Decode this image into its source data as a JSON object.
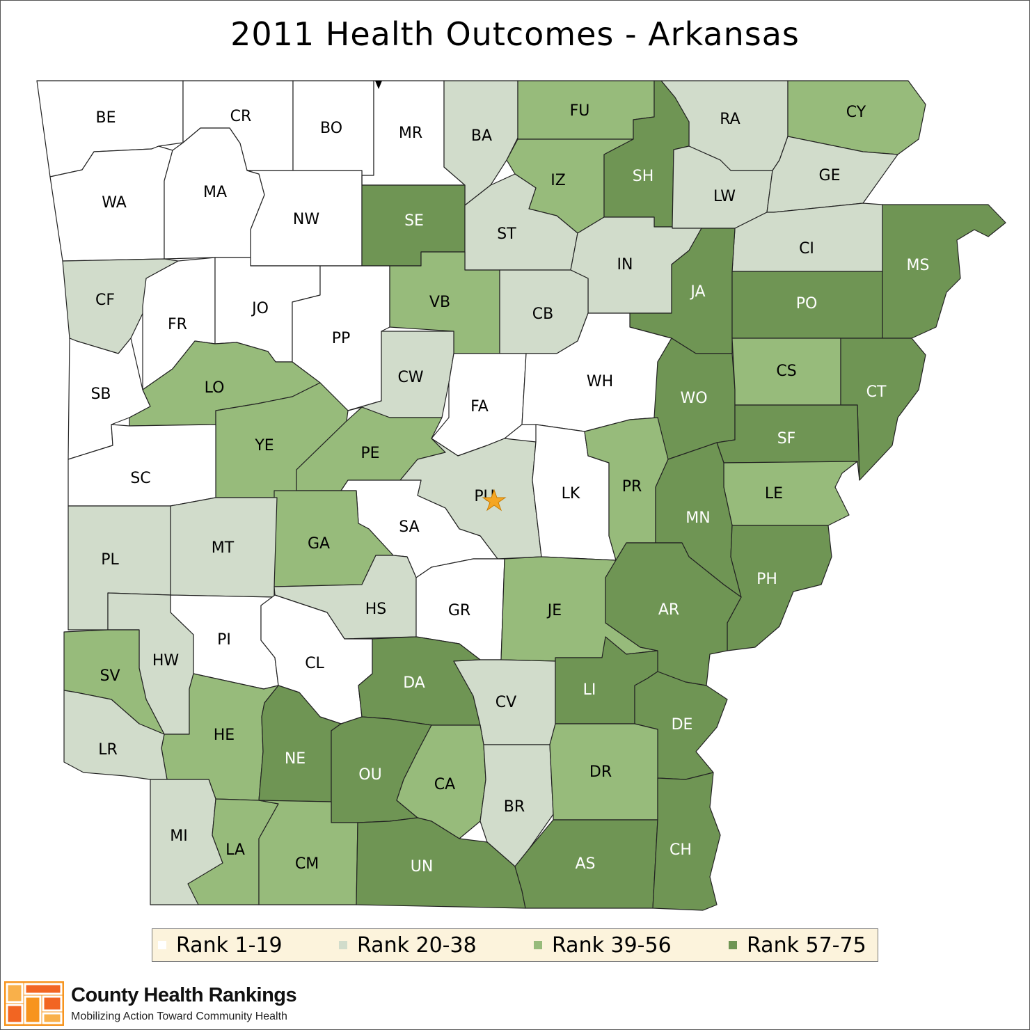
{
  "title": "2011 Health Outcomes - Arkansas",
  "colors": {
    "rank_1_19": "#ffffff",
    "rank_20_38": "#d1dccb",
    "rank_39_56": "#97bb7b",
    "rank_57_75": "#6f9554",
    "capital_star": "#f5a623"
  },
  "legend": [
    {
      "label": "Rank 1-19",
      "color": "#ffffff"
    },
    {
      "label": "Rank 20-38",
      "color": "#d1dccb"
    },
    {
      "label": "Rank 39-56",
      "color": "#97bb7b"
    },
    {
      "label": "Rank 57-75",
      "color": "#6f9554"
    }
  ],
  "counties": [
    {
      "code": "BE",
      "rank_group": "1-19"
    },
    {
      "code": "CR",
      "rank_group": "1-19"
    },
    {
      "code": "BO",
      "rank_group": "1-19"
    },
    {
      "code": "MR",
      "rank_group": "1-19"
    },
    {
      "code": "BA",
      "rank_group": "20-38"
    },
    {
      "code": "FU",
      "rank_group": "39-56"
    },
    {
      "code": "RA",
      "rank_group": "20-38"
    },
    {
      "code": "CY",
      "rank_group": "39-56"
    },
    {
      "code": "WA",
      "rank_group": "1-19"
    },
    {
      "code": "MA",
      "rank_group": "1-19"
    },
    {
      "code": "NW",
      "rank_group": "1-19"
    },
    {
      "code": "SE",
      "rank_group": "57-75"
    },
    {
      "code": "IZ",
      "rank_group": "39-56"
    },
    {
      "code": "SH",
      "rank_group": "57-75"
    },
    {
      "code": "LW",
      "rank_group": "20-38"
    },
    {
      "code": "GE",
      "rank_group": "20-38"
    },
    {
      "code": "ST",
      "rank_group": "20-38"
    },
    {
      "code": "CI",
      "rank_group": "20-38"
    },
    {
      "code": "MS",
      "rank_group": "57-75"
    },
    {
      "code": "IN",
      "rank_group": "20-38"
    },
    {
      "code": "CF",
      "rank_group": "20-38"
    },
    {
      "code": "FR",
      "rank_group": "1-19"
    },
    {
      "code": "JO",
      "rank_group": "1-19"
    },
    {
      "code": "PP",
      "rank_group": "1-19"
    },
    {
      "code": "VB",
      "rank_group": "39-56"
    },
    {
      "code": "CB",
      "rank_group": "20-38"
    },
    {
      "code": "JA",
      "rank_group": "57-75"
    },
    {
      "code": "PO",
      "rank_group": "57-75"
    },
    {
      "code": "SB",
      "rank_group": "1-19"
    },
    {
      "code": "LO",
      "rank_group": "39-56"
    },
    {
      "code": "CW",
      "rank_group": "20-38"
    },
    {
      "code": "FA",
      "rank_group": "1-19"
    },
    {
      "code": "WH",
      "rank_group": "1-19"
    },
    {
      "code": "WO",
      "rank_group": "57-75"
    },
    {
      "code": "CS",
      "rank_group": "39-56"
    },
    {
      "code": "CT",
      "rank_group": "57-75"
    },
    {
      "code": "YE",
      "rank_group": "39-56"
    },
    {
      "code": "PE",
      "rank_group": "39-56"
    },
    {
      "code": "SF",
      "rank_group": "57-75"
    },
    {
      "code": "SC",
      "rank_group": "1-19"
    },
    {
      "code": "PU",
      "rank_group": "20-38"
    },
    {
      "code": "LK",
      "rank_group": "1-19"
    },
    {
      "code": "PR",
      "rank_group": "39-56"
    },
    {
      "code": "LE",
      "rank_group": "39-56"
    },
    {
      "code": "MN",
      "rank_group": "57-75"
    },
    {
      "code": "SA",
      "rank_group": "1-19"
    },
    {
      "code": "GA",
      "rank_group": "39-56"
    },
    {
      "code": "MT",
      "rank_group": "20-38"
    },
    {
      "code": "PL",
      "rank_group": "20-38"
    },
    {
      "code": "PH",
      "rank_group": "57-75"
    },
    {
      "code": "HS",
      "rank_group": "20-38"
    },
    {
      "code": "GR",
      "rank_group": "1-19"
    },
    {
      "code": "JE",
      "rank_group": "39-56"
    },
    {
      "code": "AR",
      "rank_group": "57-75"
    },
    {
      "code": "PI",
      "rank_group": "1-19"
    },
    {
      "code": "HW",
      "rank_group": "20-38"
    },
    {
      "code": "SV",
      "rank_group": "39-56"
    },
    {
      "code": "CL",
      "rank_group": "1-19"
    },
    {
      "code": "DA",
      "rank_group": "57-75"
    },
    {
      "code": "CV",
      "rank_group": "20-38"
    },
    {
      "code": "LI",
      "rank_group": "57-75"
    },
    {
      "code": "DE",
      "rank_group": "57-75"
    },
    {
      "code": "HE",
      "rank_group": "39-56"
    },
    {
      "code": "LR",
      "rank_group": "20-38"
    },
    {
      "code": "NE",
      "rank_group": "57-75"
    },
    {
      "code": "OU",
      "rank_group": "57-75"
    },
    {
      "code": "CA",
      "rank_group": "39-56"
    },
    {
      "code": "BR",
      "rank_group": "20-38"
    },
    {
      "code": "DR",
      "rank_group": "39-56"
    },
    {
      "code": "MI",
      "rank_group": "20-38"
    },
    {
      "code": "LA",
      "rank_group": "39-56"
    },
    {
      "code": "CM",
      "rank_group": "39-56"
    },
    {
      "code": "UN",
      "rank_group": "57-75"
    },
    {
      "code": "AS",
      "rank_group": "57-75"
    },
    {
      "code": "CH",
      "rank_group": "57-75"
    }
  ],
  "brand": {
    "name": "County Health Rankings",
    "tagline": "Mobilizing Action Toward Community Health"
  }
}
